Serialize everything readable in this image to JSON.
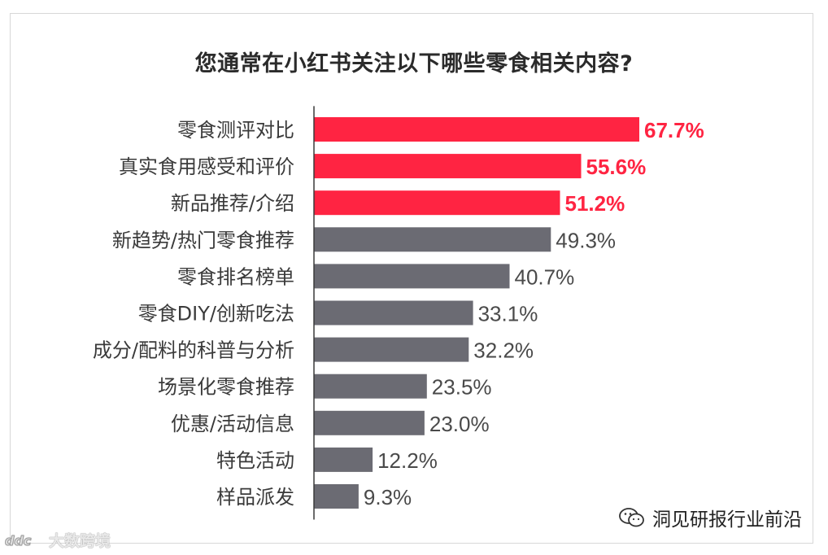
{
  "chart_data": {
    "type": "bar",
    "orientation": "horizontal",
    "title": "您通常在小红书关注以下哪些零食相关内容?",
    "categories": [
      "零食测评对比",
      "真实食用感受和评价",
      "新品推荐/介绍",
      "新趋势/热门零食推荐",
      "零食排名榜单",
      "零食DIY/创新吃法",
      "成分/配料的科普与分析",
      "场景化零食推荐",
      "优惠/活动信息",
      "特色活动",
      "样品派发"
    ],
    "values": [
      67.7,
      55.6,
      51.2,
      49.3,
      40.7,
      33.1,
      32.2,
      23.5,
      23.0,
      12.2,
      9.3
    ],
    "value_labels": [
      "67.7%",
      "55.6%",
      "51.2%",
      "49.3%",
      "40.7%",
      "33.1%",
      "32.2%",
      "23.5%",
      "23.0%",
      "12.2%",
      "9.3%"
    ],
    "highlight_count": 3,
    "colors": {
      "highlight": "#ff2442",
      "default": "#6b6b73",
      "highlight_label": "#ff2442",
      "default_label": "#4a4a4a",
      "axis": "#3a3a3a"
    },
    "xlim": [
      0,
      67.7
    ],
    "grid": false,
    "legend": "none"
  },
  "watermarks": {
    "source_label": "洞见研报行业前沿",
    "source_icon": "wechat-icon",
    "corner_label": "大数跨境",
    "corner_icon": "ddc-logo-icon"
  }
}
